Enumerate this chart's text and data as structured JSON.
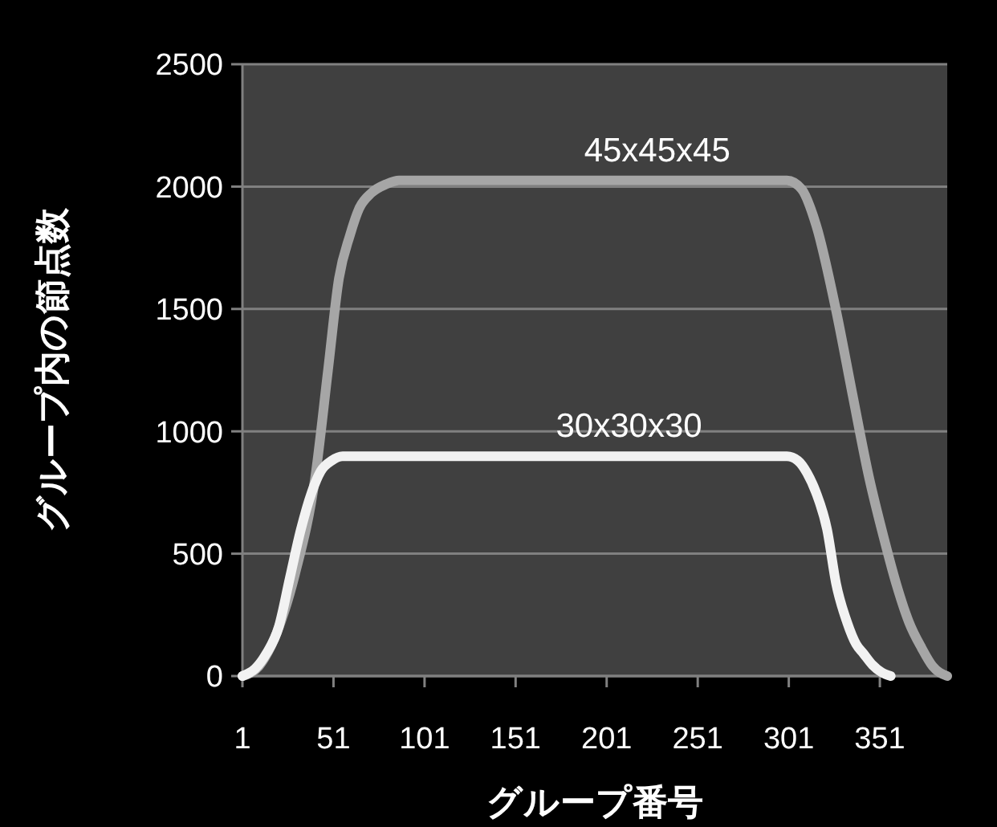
{
  "chart_data": {
    "type": "line",
    "xlabel": "グループ番号",
    "ylabel": "グループ内の節点数",
    "xlim": [
      1,
      388
    ],
    "xticks": [
      1,
      51,
      101,
      151,
      201,
      251,
      301,
      351
    ],
    "ylim": [
      0,
      2500
    ],
    "yticks": [
      0,
      500,
      1000,
      1500,
      2000,
      2500
    ],
    "grid": "y",
    "marker": "none",
    "line_style": "solid",
    "series": [
      {
        "name": "45x45x45",
        "color": "#a6a6a6",
        "x": [
          1,
          10,
          20,
          30,
          41,
          48,
          54,
          60,
          65,
          72,
          80,
          87,
          300,
          308,
          316,
          327,
          336,
          345,
          353,
          360,
          367,
          374,
          380,
          388
        ],
        "values": [
          0,
          40,
          180,
          420,
          814,
          1250,
          1625,
          1800,
          1909,
          1975,
          2010,
          2025,
          2025,
          1990,
          1843,
          1493,
          1150,
          814,
          570,
          377,
          220,
          114,
          40,
          0
        ]
      },
      {
        "name": "30x30x30",
        "color": "#f2f2f2",
        "x": [
          1,
          8,
          14,
          21,
          27,
          33,
          39,
          44,
          50,
          56,
          300,
          306,
          311,
          316,
          322,
          327,
          333,
          338,
          342,
          347,
          352,
          357
        ],
        "values": [
          0,
          30,
          90,
          202,
          400,
          596,
          750,
          837,
          880,
          898,
          898,
          880,
          830,
          749,
          600,
          377,
          220,
          130,
          92,
          45,
          15,
          0
        ]
      }
    ]
  }
}
